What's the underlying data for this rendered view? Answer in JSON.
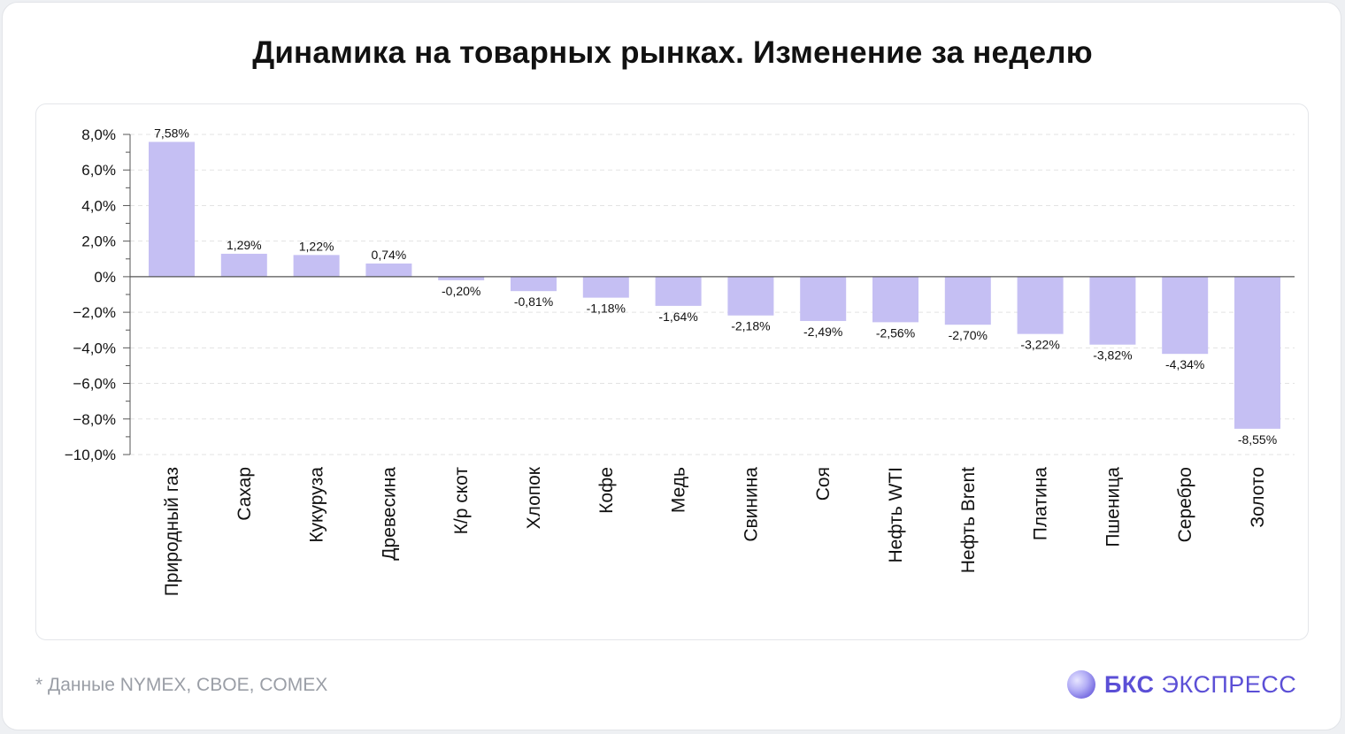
{
  "title": "Динамика на товарных рынках. Изменение за неделю",
  "footnote": "* Данные NYMEX, CBOE, COMEX",
  "brand": {
    "bold": "БКС",
    "thin": "ЭКСПРЕСС",
    "icon": "sphere-logo-icon"
  },
  "colors": {
    "bar": "#c5bff3",
    "axis": "#555555",
    "grid": "#e3e3e3",
    "brand": "#5b4fd6"
  },
  "chart_data": {
    "type": "bar",
    "title": "Динамика на товарных рынках. Изменение за неделю",
    "xlabel": "",
    "ylabel": "",
    "ylim": [
      -10,
      8
    ],
    "grid": true,
    "categories": [
      "Природный газ",
      "Сахар",
      "Кукуруза",
      "Древесина",
      "К/р скот",
      "Хлопок",
      "Кофе",
      "Медь",
      "Свинина",
      "Соя",
      "Нефть WTI",
      "Нефть Brent",
      "Платина",
      "Пшеница",
      "Серебро",
      "Золото"
    ],
    "values": [
      7.58,
      1.29,
      1.22,
      0.74,
      -0.2,
      -0.81,
      -1.18,
      -1.64,
      -2.18,
      -2.49,
      -2.56,
      -2.7,
      -3.22,
      -3.82,
      -4.34,
      -8.55
    ],
    "data_labels": [
      "7,58%",
      "1,29%",
      "1,22%",
      "0,74%",
      "-0,20%",
      "-0,81%",
      "-1,18%",
      "-1,64%",
      "-2,18%",
      "-2,49%",
      "-2,56%",
      "-2,70%",
      "-3,22%",
      "-3,82%",
      "-4,34%",
      "-8,55%"
    ],
    "y_ticks": [
      8,
      6,
      4,
      2,
      0,
      -2,
      -4,
      -6,
      -8,
      -10
    ],
    "y_tick_labels": [
      "8,0%",
      "6,0%",
      "4,0%",
      "2,0%",
      "0%",
      "−2,0%",
      "−4,0%",
      "−6,0%",
      "−8,0%",
      "−10,0%"
    ]
  }
}
